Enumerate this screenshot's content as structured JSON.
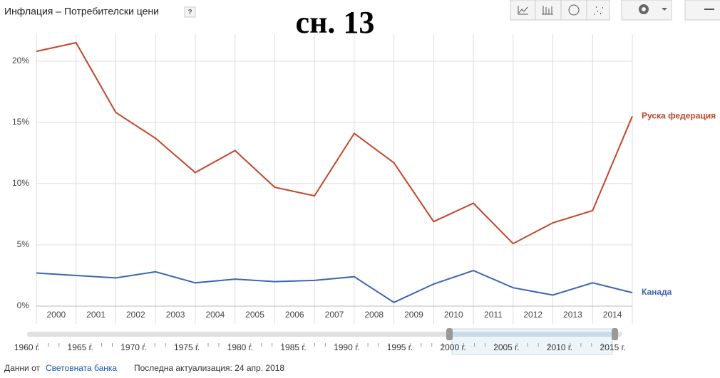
{
  "title_bar": {
    "title": "Инфлация – Потребителски цени",
    "help": "?",
    "stamp": "сн. 13"
  },
  "chart_data": {
    "type": "line",
    "x": [
      2000,
      2001,
      2002,
      2003,
      2004,
      2005,
      2006,
      2007,
      2008,
      2009,
      2010,
      2011,
      2012,
      2013,
      2014,
      2015
    ],
    "series": [
      {
        "name": "Руска федерация",
        "color": "#c4452b",
        "values": [
          20.8,
          21.5,
          15.8,
          13.7,
          10.9,
          12.7,
          9.7,
          9.0,
          14.1,
          11.7,
          6.9,
          8.4,
          5.1,
          6.8,
          7.8,
          15.5
        ]
      },
      {
        "name": "Канада",
        "color": "#3d66b0",
        "values": [
          2.7,
          2.5,
          2.3,
          2.8,
          1.9,
          2.2,
          2.0,
          2.1,
          2.4,
          0.3,
          1.8,
          2.9,
          1.5,
          0.9,
          1.9,
          1.1
        ]
      }
    ],
    "xlim": [
      2000,
      2015
    ],
    "xticks": [
      2000,
      2001,
      2002,
      2003,
      2004,
      2005,
      2006,
      2007,
      2008,
      2009,
      2010,
      2011,
      2012,
      2013,
      2014
    ],
    "ylim": [
      0,
      22.2
    ],
    "yticks": [
      {
        "value": 0,
        "label": "0%"
      },
      {
        "value": 5,
        "label": "5%"
      },
      {
        "value": 10,
        "label": "10%"
      },
      {
        "value": 15,
        "label": "15%"
      },
      {
        "value": 20,
        "label": "20%"
      }
    ],
    "grid": true
  },
  "timeline": {
    "labels": [
      "1960 г.",
      "1965 г.",
      "1970 г.",
      "1975 г.",
      "1980 г.",
      "1985 г.",
      "1990 г.",
      "1995 г.",
      "2000 г.",
      "2005 г.",
      "2010 г.",
      "2015 г."
    ]
  },
  "footer": {
    "source_prefix": "Данни от",
    "source_link": "Световната банка",
    "updated": "Последна актуализация: 24 апр. 2018"
  }
}
